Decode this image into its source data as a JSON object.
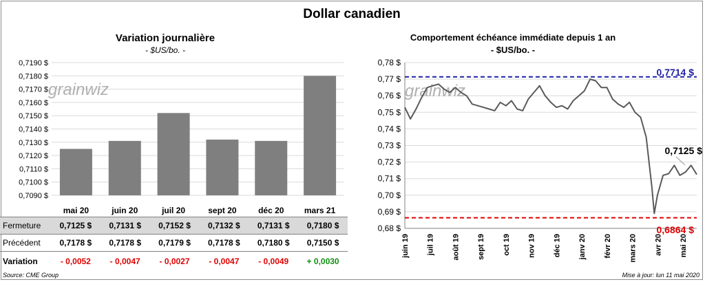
{
  "title": "Dollar canadien",
  "source": "Source: CME Group",
  "update": "Mise à jour: lun 11 mai 2020",
  "watermark": "grainwiz",
  "colors": {
    "bar": "#7f7f7f",
    "line": "#595959",
    "upper_line": "#1f1fa8",
    "lower_line": "#e00000",
    "positive": "#109010",
    "negative": "#e00000"
  },
  "left_chart": {
    "title": "Variation  journalière",
    "subtitle": "- $US/bo. -"
  },
  "right_chart": {
    "title": "Comportement échéance immédiate depuis 1 an",
    "subtitle": "- $US/bo. -",
    "label_upper": "0,7714 $",
    "label_lower": "0,6864 $",
    "label_last": "0,7125 $"
  },
  "table": {
    "rows": [
      {
        "label": "Fermeture",
        "values": [
          "0,7125  $",
          "0,7131  $",
          "0,7152  $",
          "0,7132  $",
          "0,7131  $",
          "0,7180  $"
        ]
      },
      {
        "label": "Précédent",
        "values": [
          "0,7178  $",
          "0,7178  $",
          "0,7179  $",
          "0,7178  $",
          "0,7180  $",
          "0,7150  $"
        ]
      },
      {
        "label": "Variation",
        "values": [
          "- 0,0052",
          "- 0,0047",
          "- 0,0027",
          "- 0,0047",
          "- 0,0049",
          "+ 0,0030"
        ]
      }
    ]
  },
  "chart_data": [
    {
      "type": "bar",
      "title": "Variation  journalière",
      "subtitle": "- $US/bo. -",
      "categories": [
        "mai 20",
        "juin 20",
        "juil 20",
        "sept 20",
        "déc 20",
        "mars 21"
      ],
      "values": [
        0.7125,
        0.7131,
        0.7152,
        0.7132,
        0.7131,
        0.718
      ],
      "ylim": [
        0.709,
        0.719
      ],
      "yticks": [
        "0,7090 $",
        "0,7100 $",
        "0,7110 $",
        "0,7120 $",
        "0,7130 $",
        "0,7140 $",
        "0,7150 $",
        "0,7160 $",
        "0,7170 $",
        "0,7180 $",
        "0,7190 $"
      ],
      "grid": true,
      "legend": "none"
    },
    {
      "type": "line",
      "title": "Comportement échéance immédiate depuis 1 an",
      "subtitle": "- $US/bo. -",
      "ylim": [
        0.68,
        0.78
      ],
      "yticks": [
        "0,68 $",
        "0,69 $",
        "0,70 $",
        "0,71 $",
        "0,72 $",
        "0,73 $",
        "0,74 $",
        "0,75 $",
        "0,76 $",
        "0,77 $",
        "0,78 $"
      ],
      "xticks": [
        "juin 19",
        "juil 19",
        "août 19",
        "sept 19",
        "oct 19",
        "nov 19",
        "déc 19",
        "janv 20",
        "févr 20",
        "mars 20",
        "avr 20",
        "mai 20"
      ],
      "x": [
        "2019-05-13",
        "2019-05-20",
        "2019-05-27",
        "2019-06-03",
        "2019-06-10",
        "2019-06-17",
        "2019-06-24",
        "2019-07-01",
        "2019-07-08",
        "2019-07-15",
        "2019-07-22",
        "2019-07-29",
        "2019-08-05",
        "2019-08-12",
        "2019-08-19",
        "2019-08-26",
        "2019-09-02",
        "2019-09-09",
        "2019-09-16",
        "2019-09-23",
        "2019-09-30",
        "2019-10-07",
        "2019-10-14",
        "2019-10-21",
        "2019-10-28",
        "2019-11-04",
        "2019-11-11",
        "2019-11-18",
        "2019-11-25",
        "2019-12-02",
        "2019-12-09",
        "2019-12-16",
        "2019-12-23",
        "2019-12-30",
        "2020-01-06",
        "2020-01-13",
        "2020-01-20",
        "2020-01-27",
        "2020-02-03",
        "2020-02-10",
        "2020-02-17",
        "2020-02-24",
        "2020-03-02",
        "2020-03-09",
        "2020-03-16",
        "2020-03-19",
        "2020-03-23",
        "2020-03-30",
        "2020-04-06",
        "2020-04-13",
        "2020-04-20",
        "2020-04-27",
        "2020-05-04",
        "2020-05-11"
      ],
      "series": [
        {
          "values": [
            0.753,
            0.746,
            0.752,
            0.759,
            0.765,
            0.766,
            0.767,
            0.764,
            0.762,
            0.765,
            0.762,
            0.76,
            0.755,
            0.754,
            0.753,
            0.752,
            0.751,
            0.756,
            0.754,
            0.757,
            0.752,
            0.751,
            0.758,
            0.762,
            0.766,
            0.76,
            0.756,
            0.753,
            0.754,
            0.752,
            0.757,
            0.76,
            0.763,
            0.77,
            0.769,
            0.765,
            0.765,
            0.758,
            0.755,
            0.753,
            0.756,
            0.75,
            0.747,
            0.735,
            0.705,
            0.689,
            0.7,
            0.712,
            0.713,
            0.718,
            0.712,
            0.714,
            0.718,
            0.7125
          ]
        }
      ],
      "reference_lines": [
        0.7714,
        0.6864
      ],
      "grid": true,
      "legend": "none"
    }
  ]
}
